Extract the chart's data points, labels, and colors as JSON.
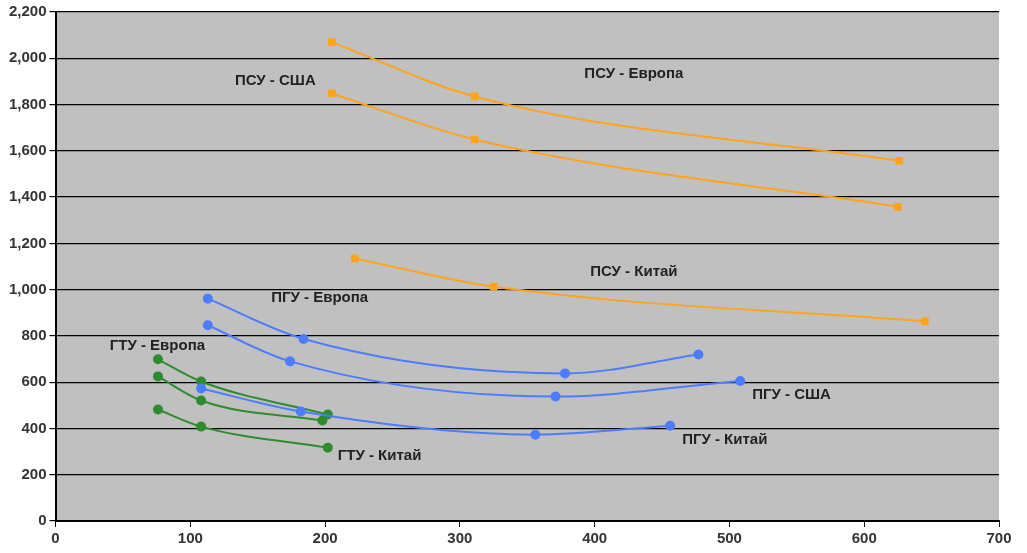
{
  "chart_data": {
    "type": "line",
    "xlim": [
      0,
      700
    ],
    "xticks": [
      0,
      100,
      200,
      300,
      400,
      500,
      600,
      700
    ],
    "ylim": [
      0,
      2200
    ],
    "yticks": [
      0,
      {
        "value": 200,
        "label": "200"
      },
      {
        "value": 400,
        "label": "400"
      },
      {
        "value": 600,
        "label": "600"
      },
      {
        "value": 800,
        "label": "800"
      },
      {
        "value": 1000,
        "label": "1,000"
      },
      {
        "value": 1200,
        "label": "1,200"
      },
      {
        "value": 1400,
        "label": "1,400"
      },
      {
        "value": 1600,
        "label": "1,600"
      },
      {
        "value": 1800,
        "label": "1,800"
      },
      {
        "value": 2000,
        "label": "2,000"
      },
      {
        "value": 2200,
        "label": "2,200"
      }
    ],
    "grid": "y",
    "legend": false,
    "series": [
      {
        "name": "ПСУ - Европа",
        "color": "#ffa31a",
        "marker": "square",
        "x": [
          205,
          311,
          626
        ],
        "values": [
          2070,
          1835,
          1557
        ]
      },
      {
        "name": "ПСУ - США",
        "color": "#ffa31a",
        "marker": "square",
        "x": [
          205,
          311,
          625
        ],
        "values": [
          1848,
          1649,
          1358
        ]
      },
      {
        "name": "ПСУ - Китай",
        "color": "#ffa31a",
        "marker": "square",
        "x": [
          222,
          325,
          645
        ],
        "values": [
          1135,
          1013,
          863
        ]
      },
      {
        "name": "ПГУ - Европа",
        "color": "#4d7cff",
        "marker": "circle",
        "x": [
          113,
          184,
          378,
          477
        ],
        "values": [
          961,
          787,
          638,
          720
        ]
      },
      {
        "name": "ПГУ - США",
        "color": "#4d7cff",
        "marker": "circle",
        "x": [
          113,
          174,
          371,
          508
        ],
        "values": [
          846,
          690,
          538,
          605
        ]
      },
      {
        "name": "ПГУ - Китай",
        "color": "#4d7cff",
        "marker": "circle",
        "x": [
          108,
          182,
          356,
          456
        ],
        "values": [
          573,
          473,
          373,
          412
        ]
      },
      {
        "name": "ГТУ - Европа",
        "color": "#2e8b2e",
        "marker": "circle",
        "x": [
          76,
          108,
          202
        ],
        "values": [
          699,
          603,
          460
        ]
      },
      {
        "color": "#2e8b2e",
        "marker": "circle",
        "x": [
          76,
          108,
          198
        ],
        "values": [
          625,
          521,
          434
        ]
      },
      {
        "name": "ГТУ - Китай",
        "color": "#2e8b2e",
        "marker": "circle",
        "x": [
          76,
          108,
          202
        ],
        "values": [
          482,
          408,
          317
        ]
      }
    ]
  }
}
